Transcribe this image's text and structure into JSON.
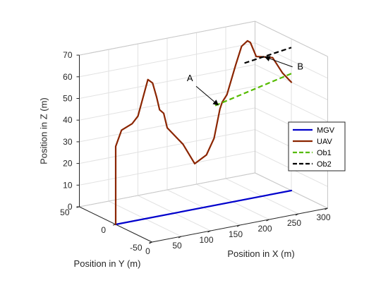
{
  "chart_data": {
    "type": "line",
    "view": "3d",
    "grid": true,
    "xlabel": "Position in X (m)",
    "ylabel": "Position in Y (m)",
    "zlabel": "Position in Z (m)",
    "xlim": [
      0,
      300
    ],
    "ylim": [
      -50,
      50
    ],
    "zlim": [
      0,
      70
    ],
    "xticks": [
      0,
      50,
      100,
      150,
      200,
      250,
      300
    ],
    "yticks": [
      -50,
      0,
      50
    ],
    "zticks": [
      0,
      10,
      20,
      30,
      40,
      50,
      60,
      70
    ],
    "legend_position": "right",
    "series": [
      {
        "name": "MGV",
        "color": "#0000cc",
        "style": "solid",
        "points": [
          [
            0,
            0,
            0
          ],
          [
            300,
            0,
            0
          ]
        ]
      },
      {
        "name": "UAV",
        "color": "#8b2500",
        "style": "solid",
        "points": [
          [
            0,
            0,
            0
          ],
          [
            0,
            0,
            36
          ],
          [
            10,
            0,
            43
          ],
          [
            28,
            0,
            45
          ],
          [
            38,
            0,
            48
          ],
          [
            55,
            0,
            64
          ],
          [
            63,
            0,
            62
          ],
          [
            70,
            0,
            55
          ],
          [
            75,
            0,
            49
          ],
          [
            82,
            0,
            47
          ],
          [
            88,
            0,
            40
          ],
          [
            115,
            0,
            31
          ],
          [
            135,
            0,
            21
          ],
          [
            155,
            0,
            24
          ],
          [
            168,
            0,
            31
          ],
          [
            178,
            0,
            44
          ],
          [
            182,
            0,
            47
          ],
          [
            190,
            0,
            50
          ],
          [
            205,
            0,
            63
          ],
          [
            215,
            0,
            71
          ],
          [
            225,
            0,
            73
          ],
          [
            230,
            0,
            72
          ],
          [
            240,
            0,
            65
          ],
          [
            255,
            0,
            64
          ],
          [
            268,
            0,
            63
          ],
          [
            285,
            0,
            55
          ],
          [
            300,
            0,
            50
          ]
        ]
      },
      {
        "name": "Ob1",
        "color": "#55bb00",
        "style": "dashed",
        "points": [
          [
            170,
            0,
            46
          ],
          [
            300,
            0,
            54
          ]
        ]
      },
      {
        "name": "Ob2",
        "color": "#000000",
        "style": "dashed",
        "points": [
          [
            220,
            0,
            63
          ],
          [
            300,
            0,
            66
          ]
        ]
      }
    ],
    "annotations": [
      {
        "text": "A",
        "target": [
          175,
          0,
          46
        ]
      },
      {
        "text": "B",
        "target": [
          255,
          0,
          64
        ]
      }
    ]
  }
}
